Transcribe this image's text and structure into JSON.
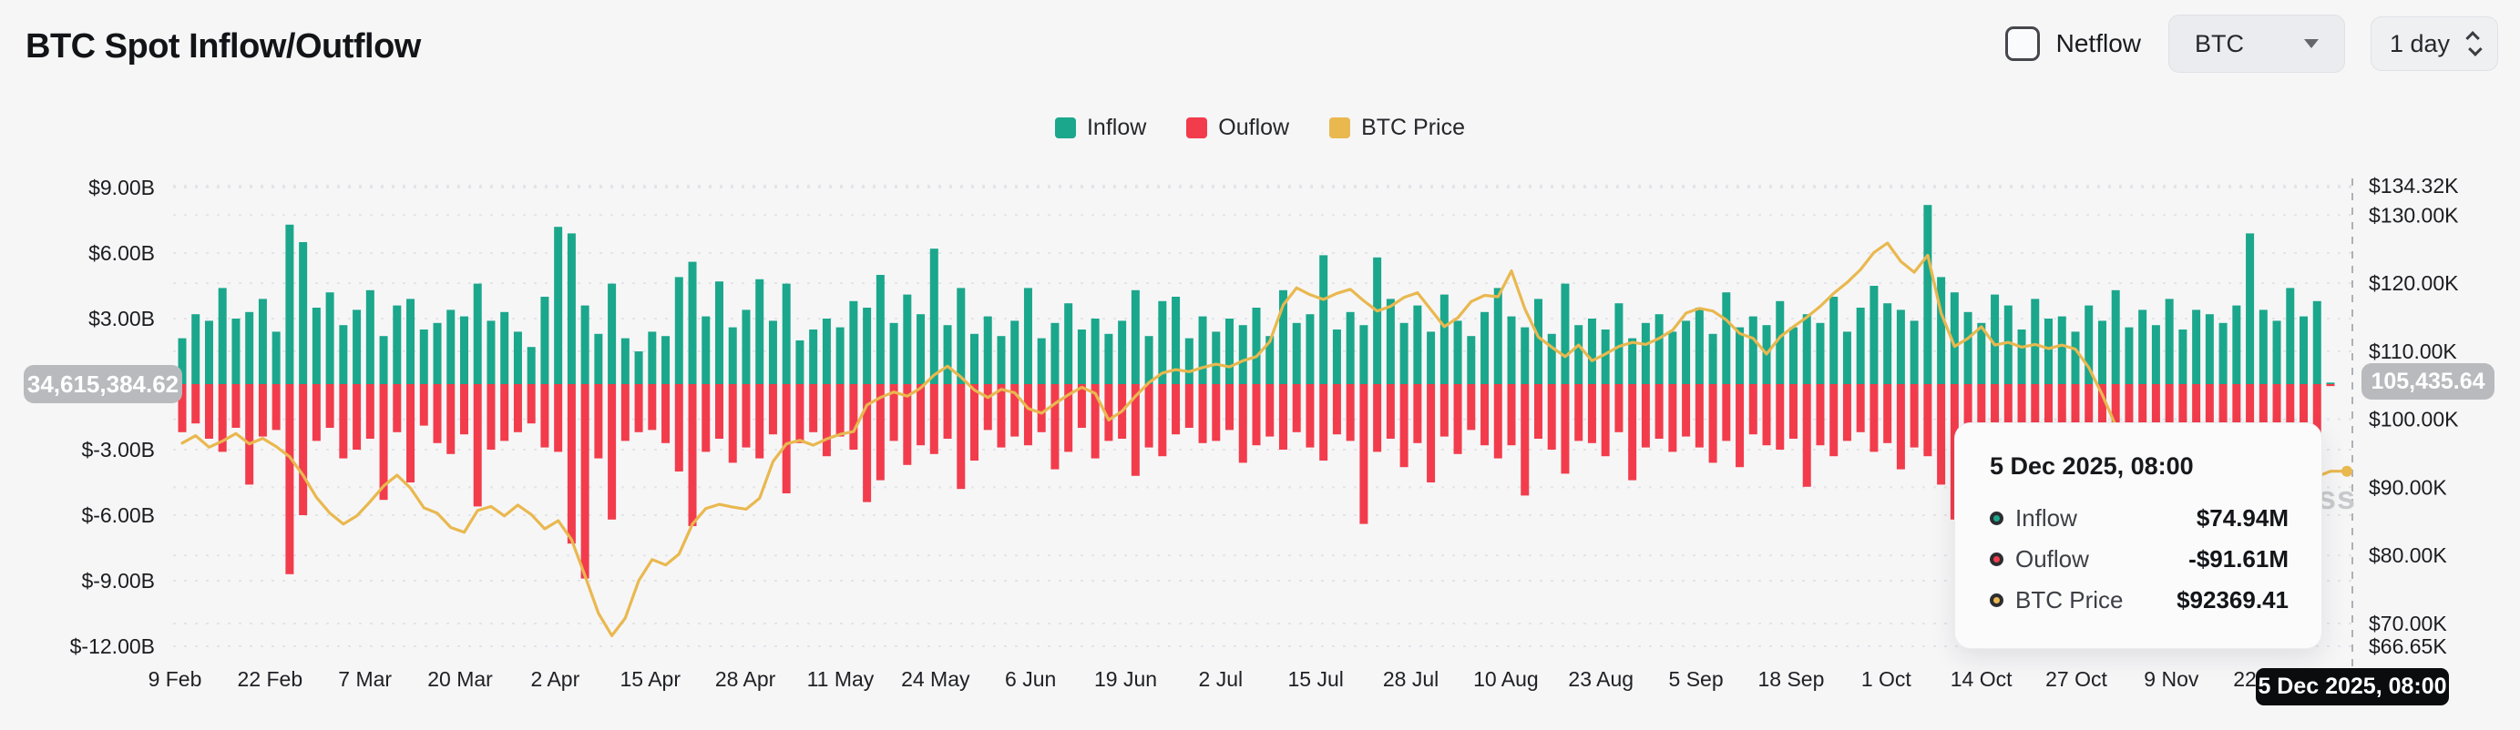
{
  "header": {
    "title": "BTC Spot Inflow/Outflow",
    "netflow_label": "Netflow",
    "symbol": "BTC",
    "interval": "1 day"
  },
  "legend": {
    "items": [
      {
        "label": "Inflow",
        "color": "#1ba78c"
      },
      {
        "label": "Ouflow",
        "color": "#f23c4c"
      },
      {
        "label": "BTC Price",
        "color": "#e9b84f"
      }
    ]
  },
  "axes": {
    "left_ticks": [
      {
        "label": "$9.00B",
        "value": 9
      },
      {
        "label": "$6.00B",
        "value": 6
      },
      {
        "label": "$3.00B",
        "value": 3
      },
      {
        "label": "$-3.00B",
        "value": -3
      },
      {
        "label": "$-6.00B",
        "value": -6
      },
      {
        "label": "$-9.00B",
        "value": -9
      },
      {
        "label": "$-12.00B",
        "value": -12
      }
    ],
    "right_ticks": [
      {
        "label": "$134.32K",
        "value": 134.32
      },
      {
        "label": "$130.00K",
        "value": 130
      },
      {
        "label": "$120.00K",
        "value": 120
      },
      {
        "label": "$110.00K",
        "value": 110
      },
      {
        "label": "$100.00K",
        "value": 100
      },
      {
        "label": "$90.00K",
        "value": 90
      },
      {
        "label": "$80.00K",
        "value": 80
      },
      {
        "label": "$70.00K",
        "value": 70
      },
      {
        "label": "$66.65K",
        "value": 66.65
      }
    ],
    "x_ticks": [
      "9 Feb",
      "22 Feb",
      "7 Mar",
      "20 Mar",
      "2 Apr",
      "15 Apr",
      "28 Apr",
      "11 May",
      "24 May",
      "6 Jun",
      "19 Jun",
      "2 Jul",
      "15 Jul",
      "28 Jul",
      "10 Aug",
      "23 Aug",
      "5 Sep",
      "18 Sep",
      "1 Oct",
      "14 Oct",
      "27 Oct",
      "9 Nov",
      "22 Nov"
    ]
  },
  "badges": {
    "zero_line_value": "34,615,384.62",
    "current_price": "105,435.64",
    "hover_date": "5 Dec 2025, 08:00"
  },
  "watermark": "ss",
  "tooltip": {
    "title": "5 Dec 2025, 08:00",
    "rows": [
      {
        "label": "Inflow",
        "value": "$74.94M",
        "color": "#1ba78c"
      },
      {
        "label": "Ouflow",
        "value": "-$91.61M",
        "color": "#f23c4c"
      },
      {
        "label": "BTC Price",
        "value": "$92369.41",
        "color": "#e9b84f"
      }
    ]
  },
  "chart_data": {
    "type": "bar+line",
    "x_range": [
      "9 Feb 2025",
      "5 Dec 2025"
    ],
    "left_axis": {
      "unit": "$B",
      "min": -12,
      "max": 9
    },
    "right_axis": {
      "unit": "$K",
      "min": 66.65,
      "max": 134.32
    },
    "grid": true,
    "legend_position": "top-center",
    "series": [
      {
        "name": "Inflow",
        "type": "bar",
        "unit": "$B",
        "color": "#1ba78c",
        "values": [
          2.1,
          3.2,
          2.9,
          4.4,
          3.0,
          3.3,
          3.9,
          2.4,
          7.3,
          6.5,
          3.5,
          4.2,
          2.7,
          3.4,
          4.3,
          2.2,
          3.6,
          3.9,
          2.5,
          2.8,
          3.4,
          3.1,
          4.6,
          2.9,
          3.3,
          2.4,
          1.7,
          4.0,
          7.2,
          6.9,
          3.6,
          2.3,
          4.6,
          2.1,
          1.5,
          2.4,
          2.2,
          4.9,
          5.6,
          3.1,
          4.7,
          2.6,
          3.4,
          4.8,
          2.9,
          4.6,
          2.0,
          2.5,
          3.0,
          2.6,
          3.8,
          3.5,
          5.0,
          2.8,
          4.1,
          3.2,
          6.2,
          2.7,
          4.4,
          2.3,
          3.1,
          2.2,
          2.9,
          4.4,
          2.1,
          2.8,
          3.7,
          2.5,
          3.0,
          2.3,
          2.9,
          4.3,
          2.2,
          3.8,
          4.0,
          2.1,
          3.1,
          2.4,
          3.0,
          2.7,
          3.5,
          2.2,
          4.3,
          2.8,
          3.2,
          5.9,
          2.5,
          3.3,
          2.7,
          5.8,
          3.9,
          2.8,
          3.6,
          2.4,
          4.1,
          2.9,
          2.2,
          3.3,
          4.4,
          3.1,
          2.6,
          3.9,
          2.3,
          4.6,
          2.7,
          3.0,
          2.5,
          3.7,
          2.1,
          2.8,
          3.2,
          2.4,
          2.9,
          3.5,
          2.3,
          4.2,
          2.6,
          3.1,
          2.7,
          3.8,
          2.6,
          3.2,
          2.8,
          4.0,
          2.4,
          3.5,
          4.5,
          3.7,
          3.4,
          2.9,
          8.2,
          4.9,
          4.2,
          3.3,
          2.8,
          4.1,
          3.6,
          2.5,
          3.9,
          3.0,
          3.1,
          2.4,
          3.6,
          2.9,
          4.3,
          2.6,
          3.4,
          2.7,
          3.9,
          2.5,
          3.4,
          3.2,
          2.8,
          3.6,
          6.9,
          3.4,
          2.9,
          4.4,
          3.1,
          3.8,
          0.07
        ]
      },
      {
        "name": "Ouflow",
        "type": "bar",
        "unit": "$B",
        "color": "#f23c4c",
        "values": [
          -2.2,
          -1.8,
          -2.5,
          -3.1,
          -2.0,
          -4.6,
          -2.4,
          -2.1,
          -8.7,
          -6.0,
          -2.6,
          -2.0,
          -3.4,
          -3.0,
          -2.5,
          -5.3,
          -2.2,
          -4.5,
          -1.9,
          -2.7,
          -3.2,
          -2.3,
          -5.6,
          -3.0,
          -2.6,
          -2.2,
          -1.8,
          -2.9,
          -3.1,
          -7.3,
          -8.9,
          -3.4,
          -6.2,
          -2.6,
          -2.2,
          -2.1,
          -2.7,
          -4.0,
          -6.5,
          -3.1,
          -2.5,
          -3.6,
          -2.9,
          -3.4,
          -2.3,
          -5.0,
          -2.7,
          -2.2,
          -3.3,
          -2.4,
          -3.0,
          -5.4,
          -4.4,
          -2.6,
          -3.7,
          -2.8,
          -3.2,
          -2.5,
          -4.8,
          -3.5,
          -2.1,
          -2.9,
          -2.4,
          -2.8,
          -2.2,
          -3.9,
          -3.1,
          -2.0,
          -3.4,
          -2.6,
          -2.5,
          -4.2,
          -2.9,
          -3.3,
          -2.3,
          -2.0,
          -2.7,
          -2.6,
          -2.1,
          -3.6,
          -2.8,
          -2.4,
          -3.0,
          -2.2,
          -2.9,
          -3.5,
          -2.3,
          -2.6,
          -6.4,
          -3.1,
          -2.5,
          -3.8,
          -2.7,
          -4.5,
          -2.4,
          -3.2,
          -2.1,
          -2.8,
          -3.4,
          -2.8,
          -5.1,
          -2.5,
          -3.0,
          -4.1,
          -2.6,
          -2.7,
          -3.3,
          -2.2,
          -4.4,
          -2.9,
          -2.5,
          -3.1,
          -2.4,
          -2.9,
          -3.6,
          -2.6,
          -3.8,
          -2.3,
          -2.8,
          -3.0,
          -2.5,
          -4.7,
          -2.8,
          -3.3,
          -2.6,
          -2.2,
          -3.1,
          -2.7,
          -3.9,
          -2.9,
          -3.3,
          -4.6,
          -6.2,
          -4.2,
          -3.4,
          -2.9,
          -5.5,
          -3.2,
          -6.9,
          -2.6,
          -3.7,
          -2.8,
          -4.9,
          -3.3,
          -2.5,
          -4.0,
          -2.9,
          -3.1,
          -6.2,
          -2.6,
          -3.8,
          -2.9,
          -5.3,
          -3.3,
          -2.8,
          -3.5,
          -2.4,
          -4.6,
          -5.2,
          -4.4,
          -0.09
        ]
      },
      {
        "name": "BTC Price",
        "type": "line",
        "unit": "$K",
        "color": "#e9b84f",
        "values": [
          96.5,
          97.6,
          95.9,
          96.8,
          97.9,
          96.4,
          97.2,
          96.0,
          94.5,
          91.8,
          88.5,
          86.2,
          84.6,
          85.8,
          87.9,
          90.2,
          91.8,
          89.9,
          87.0,
          86.2,
          84.1,
          83.4,
          86.6,
          87.2,
          85.8,
          87.4,
          86.0,
          83.9,
          85.1,
          82.3,
          77.0,
          71.5,
          68.2,
          70.8,
          76.3,
          79.4,
          78.6,
          80.2,
          84.6,
          86.9,
          87.5,
          87.1,
          86.8,
          88.4,
          93.8,
          96.4,
          96.9,
          96.2,
          97.1,
          97.8,
          98.2,
          102.1,
          103.2,
          104.0,
          103.4,
          104.6,
          106.5,
          107.8,
          106.2,
          104.3,
          103.2,
          104.4,
          103.9,
          101.6,
          100.9,
          102.3,
          103.6,
          104.7,
          103.8,
          99.9,
          101.2,
          103.4,
          105.4,
          106.8,
          107.3,
          107.0,
          107.6,
          108.1,
          107.7,
          108.6,
          109.2,
          111.4,
          116.8,
          119.3,
          118.3,
          117.6,
          118.5,
          119.1,
          117.4,
          115.9,
          116.6,
          117.9,
          118.6,
          116.1,
          113.6,
          114.9,
          117.3,
          118.2,
          118.0,
          121.8,
          116.2,
          112.1,
          110.6,
          109.2,
          110.9,
          108.6,
          109.6,
          110.7,
          111.3,
          111.0,
          111.9,
          113.1,
          115.6,
          116.3,
          115.9,
          114.6,
          112.6,
          111.9,
          109.6,
          112.1,
          113.6,
          115.0,
          116.6,
          118.5,
          120.1,
          122.0,
          124.5,
          125.9,
          123.2,
          121.6,
          124.1,
          115.6,
          110.7,
          111.9,
          113.6,
          110.9,
          111.3,
          110.6,
          111.0,
          110.4,
          110.9,
          110.3,
          107.6,
          103.6,
          99.1,
          96.6,
          97.6,
          95.1,
          92.1,
          88.6,
          84.7,
          86.6,
          91.6,
          87.1,
          90.6,
          93.4,
          91.1,
          90.3,
          92.9,
          91.6,
          92.37
        ]
      }
    ]
  }
}
